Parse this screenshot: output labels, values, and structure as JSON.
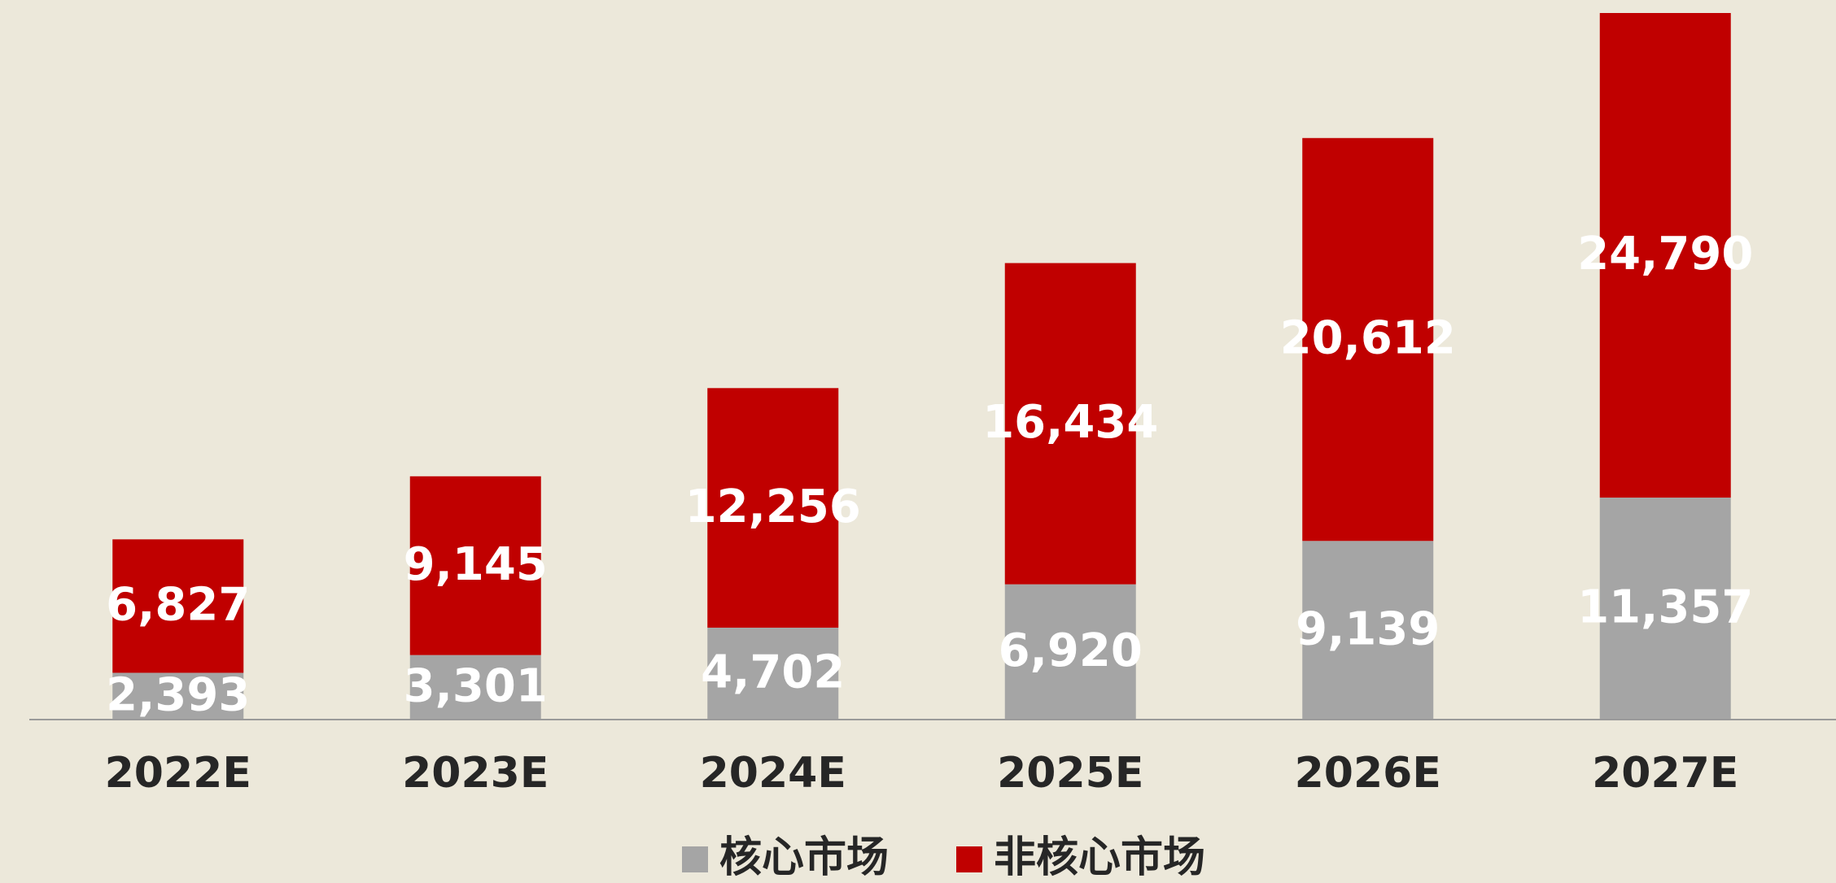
{
  "chart_data": {
    "type": "stacked_bar",
    "categories": [
      "2022E",
      "2023E",
      "2024E",
      "2025E",
      "2026E",
      "2027E"
    ],
    "series": [
      {
        "name": "核心市场",
        "color": "#a5a5a5",
        "values": [
          2393,
          3301,
          4702,
          6920,
          9139,
          11357
        ],
        "value_labels": [
          "2,393",
          "3,301",
          "4,702",
          "6,920",
          "9,139",
          "11,357"
        ]
      },
      {
        "name": "非核心市场",
        "color": "#c00000",
        "values": [
          6827,
          9145,
          12256,
          16434,
          20612,
          24790
        ],
        "value_labels": [
          "6,827",
          "9,145",
          "12,256",
          "16,434",
          "20,612",
          "24,790"
        ]
      }
    ],
    "legend": "bottom"
  }
}
